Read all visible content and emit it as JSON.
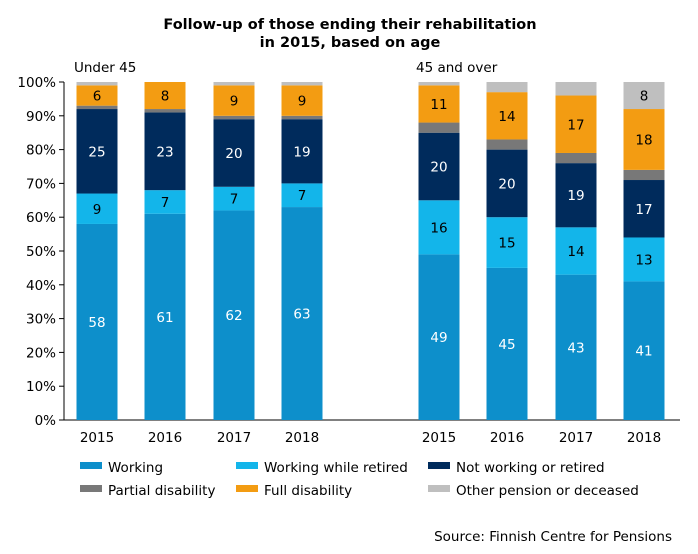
{
  "chart_data": {
    "type": "bar",
    "stacked": true,
    "title": [
      "Follow-up of those ending their rehabilitation",
      "in 2015, based on age"
    ],
    "groups": [
      {
        "name": "Under 45",
        "categories": [
          "2015",
          "2016",
          "2017",
          "2018"
        ]
      },
      {
        "name": "45 and over",
        "categories": [
          "2015",
          "2016",
          "2017",
          "2018"
        ]
      }
    ],
    "ylim": [
      0,
      100
    ],
    "yticks": [
      0,
      10,
      20,
      30,
      40,
      50,
      60,
      70,
      80,
      90,
      100
    ],
    "ytick_suffix": "%",
    "grid": false,
    "legend_position": "bottom",
    "series": [
      {
        "name": "Working",
        "color": "#0d8fcb",
        "values": [
          58,
          61,
          62,
          63,
          49,
          45,
          43,
          41
        ],
        "labels": [
          "58",
          "61",
          "62",
          "63",
          "49",
          "45",
          "43",
          "41"
        ],
        "label_color": "#ffffff"
      },
      {
        "name": "Working while retired",
        "color": "#13b5ea",
        "values": [
          9,
          7,
          7,
          7,
          16,
          15,
          14,
          13
        ],
        "labels": [
          "9",
          "7",
          "7",
          "7",
          "16",
          "15",
          "14",
          "13"
        ],
        "label_color": "#000000"
      },
      {
        "name": "Not working or retired",
        "color": "#002b5c",
        "values": [
          25,
          23,
          20,
          19,
          20,
          20,
          19,
          17
        ],
        "labels": [
          "25",
          "23",
          "20",
          "19",
          "20",
          "20",
          "19",
          "17"
        ],
        "label_color": "#ffffff"
      },
      {
        "name": "Partial disability",
        "color": "#787878",
        "values": [
          1,
          1,
          1,
          1,
          3,
          3,
          3,
          3
        ],
        "labels": [
          "",
          "",
          "",
          "",
          "",
          "",
          "",
          ""
        ],
        "label_color": "#000000"
      },
      {
        "name": "Full disability",
        "color": "#f39c12",
        "values": [
          6,
          8,
          9,
          9,
          11,
          14,
          17,
          18
        ],
        "labels": [
          "6",
          "8",
          "9",
          "9",
          "11",
          "14",
          "17",
          "18"
        ],
        "label_color": "#000000"
      },
      {
        "name": "Other pension or deceased",
        "color": "#bfbfbf",
        "values": [
          1,
          0,
          1,
          1,
          1,
          3,
          4,
          8
        ],
        "labels": [
          "",
          "",
          "",
          "",
          "",
          "",
          "",
          "8"
        ],
        "label_color": "#000000"
      }
    ],
    "source": "Source: Finnish Centre for Pensions"
  }
}
